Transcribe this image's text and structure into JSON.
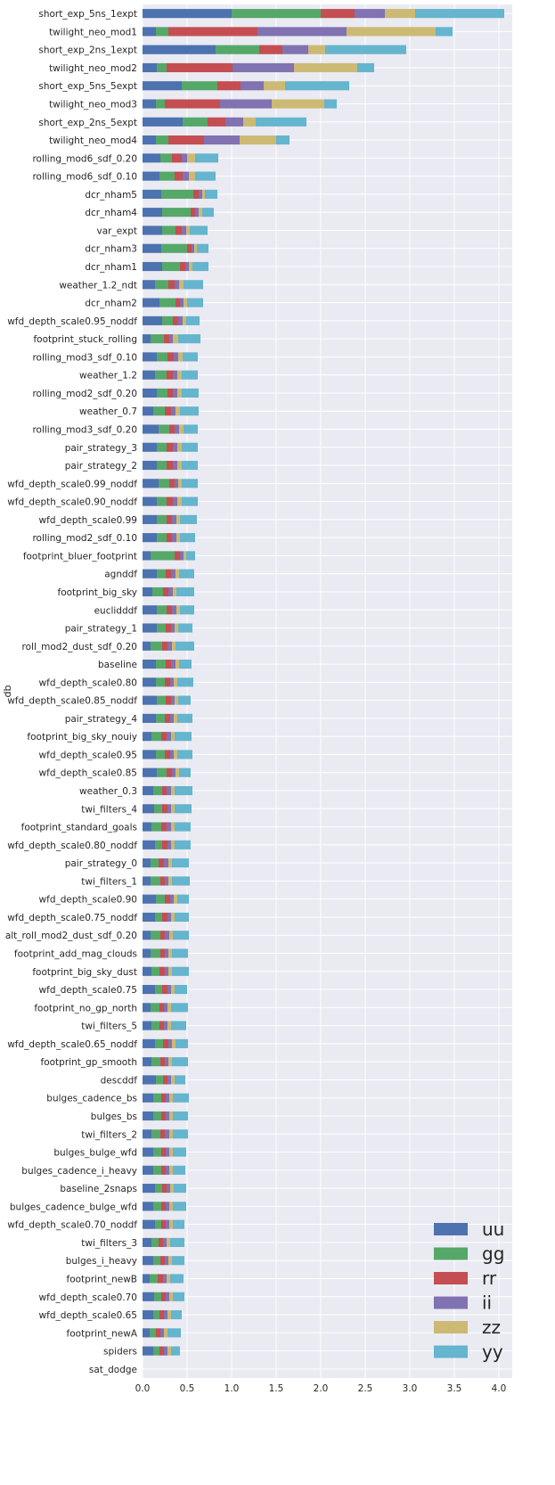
{
  "chart_data": {
    "type": "bar",
    "orientation": "horizontal",
    "stacked": true,
    "ylabel": "db",
    "xlabel": "",
    "xlim": [
      0,
      4.15
    ],
    "xticks": [
      0.0,
      0.5,
      1.0,
      1.5,
      2.0,
      2.5,
      3.0,
      3.5,
      4.0
    ],
    "xtick_labels": [
      "0.0",
      "0.5",
      "1.0",
      "1.5",
      "2.0",
      "2.5",
      "3.0",
      "3.5",
      "4.0"
    ],
    "grid": true,
    "legend_position": "lower-right",
    "colors": {
      "uu": "#4c72b0",
      "gg": "#55a868",
      "rr": "#c44e52",
      "ii": "#8172b2",
      "zz": "#ccb974",
      "yy": "#64b5cd"
    },
    "series_order": [
      "uu",
      "gg",
      "rr",
      "ii",
      "zz",
      "yy"
    ],
    "categories": [
      "short_exp_5ns_1expt",
      "twilight_neo_mod1",
      "short_exp_2ns_1expt",
      "twilight_neo_mod2",
      "short_exp_5ns_5expt",
      "twilight_neo_mod3",
      "short_exp_2ns_5expt",
      "twilight_neo_mod4",
      "rolling_mod6_sdf_0.20",
      "rolling_mod6_sdf_0.10",
      "dcr_nham5",
      "dcr_nham4",
      "var_expt",
      "dcr_nham3",
      "dcr_nham1",
      "weather_1.2_ndt",
      "dcr_nham2",
      "wfd_depth_scale0.95_noddf",
      "footprint_stuck_rolling",
      "rolling_mod3_sdf_0.10",
      "weather_1.2",
      "rolling_mod2_sdf_0.20",
      "weather_0.7",
      "rolling_mod3_sdf_0.20",
      "pair_strategy_3",
      "pair_strategy_2",
      "wfd_depth_scale0.99_noddf",
      "wfd_depth_scale0.90_noddf",
      "wfd_depth_scale0.99",
      "rolling_mod2_sdf_0.10",
      "footprint_bluer_footprint",
      "agnddf",
      "footprint_big_sky",
      "euclidddf",
      "pair_strategy_1",
      "roll_mod2_dust_sdf_0.20",
      "baseline",
      "wfd_depth_scale0.80",
      "wfd_depth_scale0.85_noddf",
      "pair_strategy_4",
      "footprint_big_sky_nouiy",
      "wfd_depth_scale0.95",
      "wfd_depth_scale0.85",
      "weather_0.3",
      "twi_filters_4",
      "footprint_standard_goals",
      "wfd_depth_scale0.80_noddf",
      "pair_strategy_0",
      "twi_filters_1",
      "wfd_depth_scale0.90",
      "wfd_depth_scale0.75_noddf",
      "alt_roll_mod2_dust_sdf_0.20",
      "footprint_add_mag_clouds",
      "footprint_big_sky_dust",
      "wfd_depth_scale0.75",
      "footprint_no_gp_north",
      "twi_filters_5",
      "wfd_depth_scale0.65_noddf",
      "footprint_gp_smooth",
      "descddf",
      "bulges_cadence_bs",
      "bulges_bs",
      "twi_filters_2",
      "bulges_bulge_wfd",
      "bulges_cadence_i_heavy",
      "baseline_2snaps",
      "bulges_cadence_bulge_wfd",
      "wfd_depth_scale0.70_noddf",
      "twi_filters_3",
      "bulges_i_heavy",
      "footprint_newB",
      "wfd_depth_scale0.70",
      "wfd_depth_scale0.65",
      "footprint_newA",
      "spiders",
      "sat_dodge"
    ],
    "series": [
      {
        "name": "uu",
        "values": [
          1.0,
          0.15,
          0.82,
          0.16,
          0.44,
          0.15,
          0.45,
          0.15,
          0.2,
          0.19,
          0.21,
          0.22,
          0.22,
          0.21,
          0.22,
          0.14,
          0.19,
          0.22,
          0.09,
          0.16,
          0.14,
          0.16,
          0.12,
          0.18,
          0.16,
          0.16,
          0.18,
          0.16,
          0.16,
          0.16,
          0.09,
          0.16,
          0.11,
          0.16,
          0.16,
          0.09,
          0.15,
          0.15,
          0.16,
          0.15,
          0.1,
          0.15,
          0.16,
          0.12,
          0.13,
          0.1,
          0.14,
          0.09,
          0.09,
          0.15,
          0.14,
          0.09,
          0.09,
          0.1,
          0.14,
          0.09,
          0.1,
          0.14,
          0.1,
          0.15,
          0.12,
          0.12,
          0.1,
          0.12,
          0.12,
          0.14,
          0.12,
          0.14,
          0.1,
          0.12,
          0.08,
          0.13,
          0.12,
          0.08,
          0.12,
          0.0
        ]
      },
      {
        "name": "gg",
        "values": [
          1.0,
          0.14,
          0.49,
          0.11,
          0.4,
          0.1,
          0.28,
          0.14,
          0.13,
          0.17,
          0.36,
          0.32,
          0.15,
          0.29,
          0.2,
          0.15,
          0.18,
          0.12,
          0.15,
          0.12,
          0.13,
          0.12,
          0.13,
          0.12,
          0.11,
          0.11,
          0.12,
          0.11,
          0.11,
          0.11,
          0.27,
          0.1,
          0.12,
          0.11,
          0.1,
          0.13,
          0.11,
          0.1,
          0.1,
          0.1,
          0.11,
          0.1,
          0.11,
          0.1,
          0.09,
          0.11,
          0.08,
          0.09,
          0.11,
          0.1,
          0.08,
          0.11,
          0.11,
          0.09,
          0.08,
          0.1,
          0.09,
          0.09,
          0.1,
          0.08,
          0.09,
          0.09,
          0.1,
          0.09,
          0.09,
          0.08,
          0.09,
          0.07,
          0.08,
          0.08,
          0.09,
          0.08,
          0.07,
          0.07,
          0.07,
          0.0
        ]
      },
      {
        "name": "rr",
        "values": [
          0.38,
          1.0,
          0.26,
          0.74,
          0.26,
          0.62,
          0.2,
          0.4,
          0.11,
          0.09,
          0.06,
          0.05,
          0.07,
          0.05,
          0.06,
          0.07,
          0.05,
          0.06,
          0.06,
          0.07,
          0.07,
          0.06,
          0.07,
          0.06,
          0.07,
          0.07,
          0.06,
          0.07,
          0.06,
          0.06,
          0.06,
          0.06,
          0.06,
          0.06,
          0.06,
          0.06,
          0.06,
          0.06,
          0.06,
          0.06,
          0.06,
          0.06,
          0.06,
          0.05,
          0.06,
          0.06,
          0.06,
          0.06,
          0.05,
          0.06,
          0.06,
          0.05,
          0.05,
          0.06,
          0.06,
          0.05,
          0.05,
          0.06,
          0.05,
          0.05,
          0.05,
          0.05,
          0.05,
          0.05,
          0.05,
          0.05,
          0.05,
          0.05,
          0.05,
          0.05,
          0.06,
          0.05,
          0.05,
          0.05,
          0.05,
          0.0
        ]
      },
      {
        "name": "ii",
        "values": [
          0.34,
          1.0,
          0.29,
          0.69,
          0.26,
          0.58,
          0.2,
          0.4,
          0.06,
          0.07,
          0.04,
          0.04,
          0.05,
          0.03,
          0.04,
          0.05,
          0.04,
          0.05,
          0.04,
          0.05,
          0.05,
          0.05,
          0.05,
          0.05,
          0.05,
          0.05,
          0.04,
          0.05,
          0.05,
          0.05,
          0.04,
          0.05,
          0.05,
          0.05,
          0.04,
          0.05,
          0.05,
          0.04,
          0.04,
          0.04,
          0.05,
          0.04,
          0.04,
          0.05,
          0.04,
          0.05,
          0.04,
          0.05,
          0.04,
          0.04,
          0.04,
          0.05,
          0.04,
          0.04,
          0.04,
          0.04,
          0.04,
          0.04,
          0.04,
          0.04,
          0.04,
          0.04,
          0.05,
          0.04,
          0.04,
          0.04,
          0.04,
          0.04,
          0.04,
          0.04,
          0.04,
          0.04,
          0.04,
          0.04,
          0.04,
          0.0
        ]
      },
      {
        "name": "zz",
        "values": [
          0.34,
          1.0,
          0.19,
          0.71,
          0.24,
          0.59,
          0.14,
          0.41,
          0.09,
          0.07,
          0.03,
          0.04,
          0.04,
          0.03,
          0.04,
          0.05,
          0.04,
          0.04,
          0.06,
          0.05,
          0.05,
          0.05,
          0.05,
          0.05,
          0.05,
          0.05,
          0.04,
          0.05,
          0.04,
          0.04,
          0.03,
          0.04,
          0.04,
          0.04,
          0.04,
          0.04,
          0.04,
          0.04,
          0.04,
          0.04,
          0.04,
          0.04,
          0.04,
          0.04,
          0.04,
          0.04,
          0.04,
          0.04,
          0.04,
          0.04,
          0.04,
          0.04,
          0.04,
          0.04,
          0.04,
          0.04,
          0.04,
          0.04,
          0.04,
          0.04,
          0.04,
          0.04,
          0.04,
          0.04,
          0.04,
          0.04,
          0.04,
          0.04,
          0.04,
          0.04,
          0.04,
          0.04,
          0.04,
          0.04,
          0.04,
          0.0
        ]
      },
      {
        "name": "yy",
        "values": [
          1.0,
          0.19,
          0.91,
          0.19,
          0.72,
          0.14,
          0.57,
          0.15,
          0.26,
          0.23,
          0.14,
          0.13,
          0.2,
          0.13,
          0.18,
          0.22,
          0.18,
          0.15,
          0.25,
          0.17,
          0.18,
          0.19,
          0.21,
          0.16,
          0.18,
          0.18,
          0.18,
          0.18,
          0.19,
          0.17,
          0.1,
          0.17,
          0.2,
          0.16,
          0.16,
          0.21,
          0.14,
          0.18,
          0.14,
          0.17,
          0.19,
          0.17,
          0.13,
          0.2,
          0.19,
          0.18,
          0.18,
          0.19,
          0.2,
          0.13,
          0.16,
          0.18,
          0.18,
          0.19,
          0.14,
          0.19,
          0.17,
          0.14,
          0.18,
          0.12,
          0.18,
          0.17,
          0.17,
          0.15,
          0.14,
          0.14,
          0.15,
          0.13,
          0.16,
          0.14,
          0.15,
          0.13,
          0.12,
          0.15,
          0.1,
          0.0
        ]
      }
    ]
  }
}
